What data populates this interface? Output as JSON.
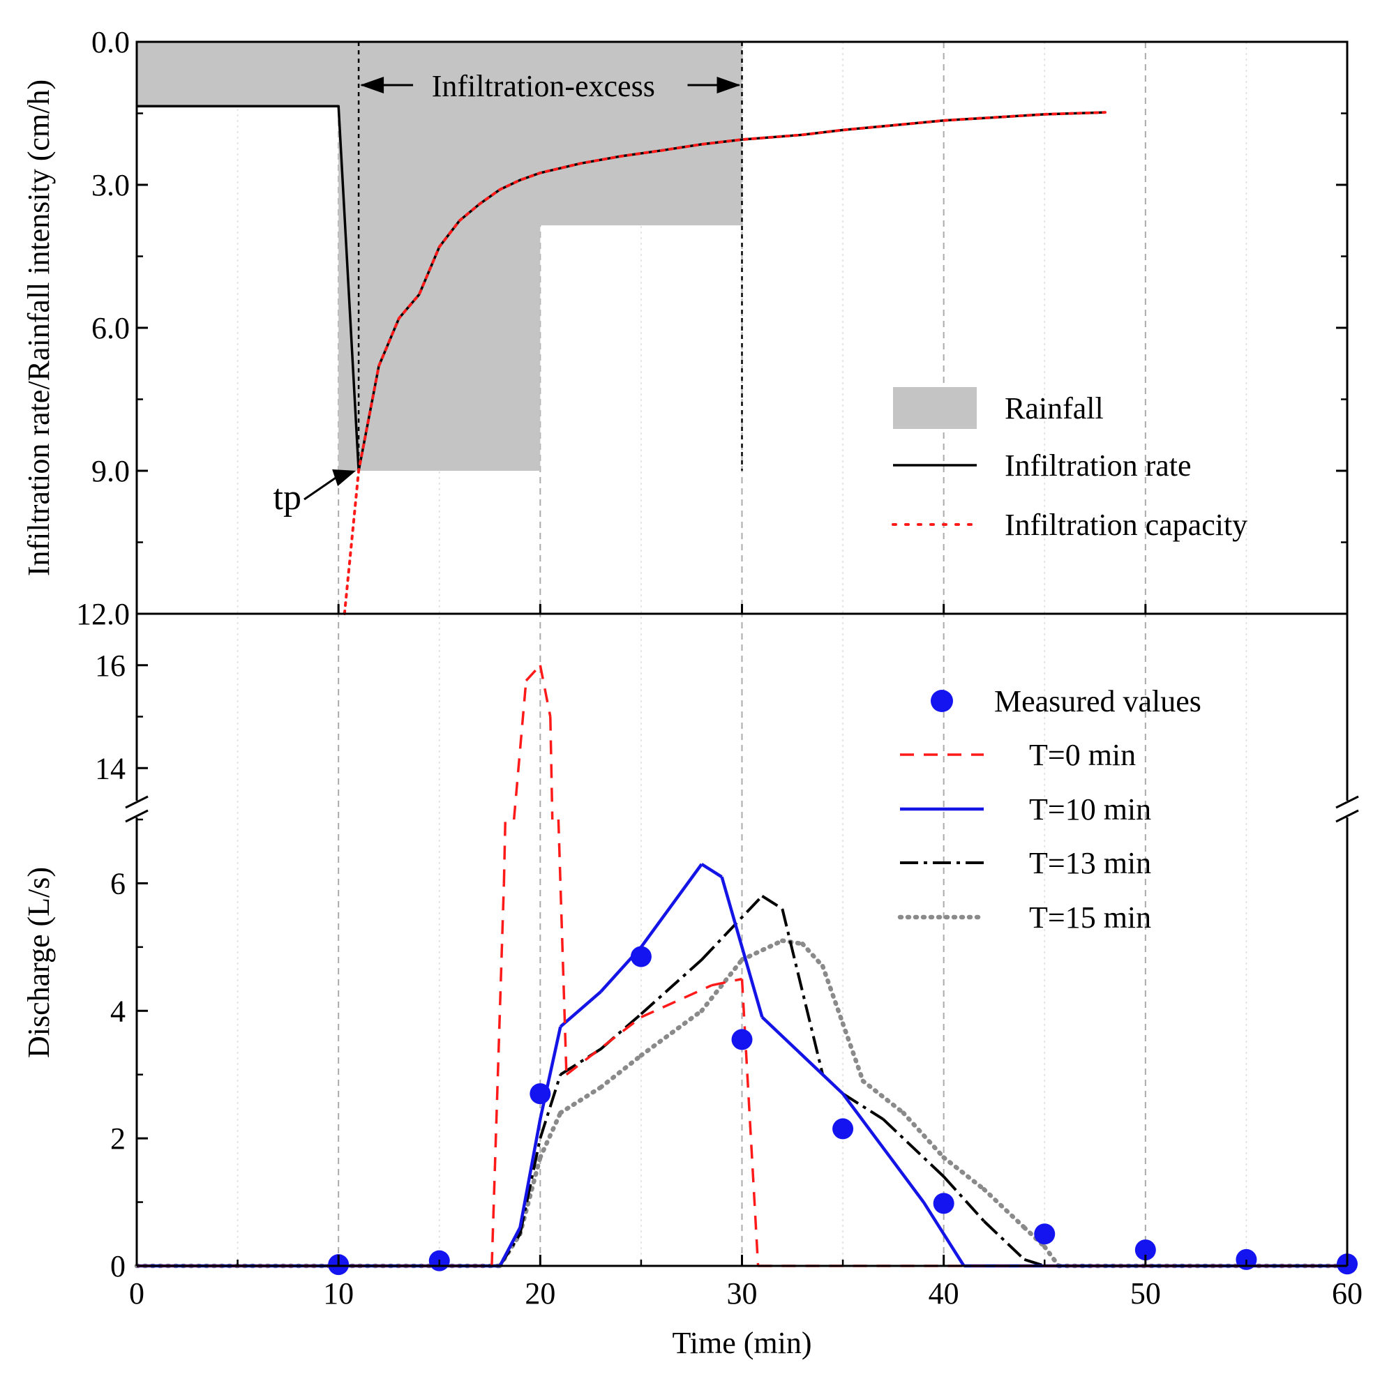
{
  "chart_data": [
    {
      "type": "line",
      "panel": "top",
      "ylabel": "Infiltration rate/Rainfall intensity (cm/h)",
      "y_axis_inverted": true,
      "ylim": [
        0,
        12
      ],
      "xlim": [
        0,
        60
      ],
      "y_ticks": [
        0,
        3,
        6,
        9,
        12
      ],
      "y_tick_labels": [
        "0.0",
        "3.0",
        "6.0",
        "9.0",
        "12.0"
      ],
      "annotations": {
        "infiltration_excess": "Infiltration-excess",
        "infiltration_excess_range": [
          11,
          30
        ],
        "tp": "tp",
        "tp_point": [
          11,
          9.0
        ]
      },
      "rainfall_steps": [
        {
          "x0": 0,
          "x1": 10,
          "value": 1.35
        },
        {
          "x0": 10,
          "x1": 20,
          "value": 9.0
        },
        {
          "x0": 20,
          "x1": 30,
          "value": 3.85
        }
      ],
      "series": [
        {
          "name": "Infiltration rate",
          "x": [
            0,
            10,
            11,
            12,
            13,
            14,
            15,
            16,
            17,
            18,
            19,
            20,
            22,
            24,
            26,
            28,
            30,
            33,
            35,
            40,
            45,
            48
          ],
          "y": [
            1.35,
            1.35,
            9.0,
            6.8,
            5.8,
            5.3,
            4.3,
            3.75,
            3.4,
            3.1,
            2.9,
            2.75,
            2.55,
            2.4,
            2.28,
            2.15,
            2.05,
            1.95,
            1.85,
            1.65,
            1.52,
            1.48
          ]
        },
        {
          "name": "Infiltration capacity",
          "x": [
            10.3,
            11,
            12,
            13,
            14,
            15,
            16,
            17,
            18,
            19,
            20,
            22,
            24,
            26,
            28,
            30,
            33,
            35,
            40,
            45,
            48
          ],
          "y": [
            12.0,
            9.0,
            6.8,
            5.8,
            5.3,
            4.3,
            3.75,
            3.4,
            3.1,
            2.9,
            2.75,
            2.55,
            2.4,
            2.28,
            2.15,
            2.05,
            1.95,
            1.85,
            1.65,
            1.52,
            1.48
          ]
        }
      ],
      "legend": [
        "Rainfall",
        "Infiltration rate",
        "Infiltration capacity"
      ],
      "legend_position": "right"
    },
    {
      "type": "line",
      "panel": "bottom",
      "ylabel": "Discharge (L/s)",
      "xlabel": "Time (min)",
      "xlim": [
        0,
        60
      ],
      "x_ticks": [
        0,
        10,
        20,
        30,
        40,
        50,
        60
      ],
      "x_tick_labels": [
        "0",
        "10",
        "20",
        "30",
        "40",
        "50",
        "60"
      ],
      "y_lower_range": [
        0,
        7
      ],
      "y_upper_range": [
        13,
        17
      ],
      "y_ticks_lower": [
        0,
        2,
        4,
        6
      ],
      "y_tick_labels_lower": [
        "0",
        "2",
        "4",
        "6"
      ],
      "y_ticks_upper": [
        14,
        16
      ],
      "y_tick_labels_upper": [
        "14",
        "16"
      ],
      "axis_break": true,
      "series": [
        {
          "name": "Measured values",
          "kind": "scatter",
          "x": [
            10,
            15,
            20,
            25,
            30,
            35,
            40,
            45,
            50,
            55,
            60
          ],
          "y": [
            0.02,
            0.08,
            2.7,
            4.85,
            3.55,
            2.15,
            0.98,
            0.5,
            0.25,
            0.1,
            0.03
          ]
        },
        {
          "name": "T=0 min",
          "x": [
            0,
            17.6,
            18.2,
            18.7,
            19.3,
            20,
            20.5,
            20.9,
            21.3,
            25,
            28.5,
            30,
            30.8,
            60
          ],
          "y": [
            0,
            0,
            6.0,
            13.0,
            15.7,
            16.0,
            15.0,
            7.0,
            3.0,
            3.9,
            4.4,
            4.5,
            0,
            0
          ]
        },
        {
          "name": "T=10 min",
          "x": [
            0,
            18,
            19,
            20,
            21,
            23,
            25,
            28,
            29,
            31,
            35,
            39,
            41,
            60
          ],
          "y": [
            0,
            0,
            0.6,
            2.3,
            3.75,
            4.3,
            5.0,
            6.3,
            6.1,
            3.9,
            2.7,
            1.0,
            0,
            0
          ]
        },
        {
          "name": "T=13 min",
          "x": [
            0,
            18,
            19,
            20,
            21,
            23,
            25,
            28,
            31,
            32,
            34,
            35,
            37,
            40,
            42,
            44,
            45,
            60
          ],
          "y": [
            0,
            0,
            0.5,
            2.0,
            3.0,
            3.4,
            3.95,
            4.8,
            5.8,
            5.6,
            3.0,
            2.7,
            2.3,
            1.4,
            0.7,
            0.1,
            0,
            0
          ]
        },
        {
          "name": "T=15 min",
          "x": [
            0,
            18,
            19,
            20,
            21,
            23,
            25,
            28,
            30,
            32,
            33,
            34,
            35,
            36,
            38,
            40,
            42,
            44,
            45,
            45.7,
            60
          ],
          "y": [
            0,
            0,
            0.5,
            1.7,
            2.4,
            2.8,
            3.3,
            4.0,
            4.8,
            5.1,
            5.05,
            4.7,
            3.8,
            2.9,
            2.4,
            1.7,
            1.2,
            0.6,
            0.3,
            0,
            0
          ]
        }
      ],
      "legend": [
        "Measured values",
        "T=0 min",
        "T=10 min",
        "T=13 min",
        "T=15 min"
      ],
      "legend_position": "right"
    }
  ],
  "colors": {
    "rainfall_fill": "#c4c4c4",
    "capacity": "#ff1a1a",
    "t0": "#ff1a1a",
    "t10": "#1414e6",
    "t13": "#000000",
    "t15": "#8a8a8a",
    "measured": "#1414f0",
    "grid": "#c8c8c8"
  }
}
